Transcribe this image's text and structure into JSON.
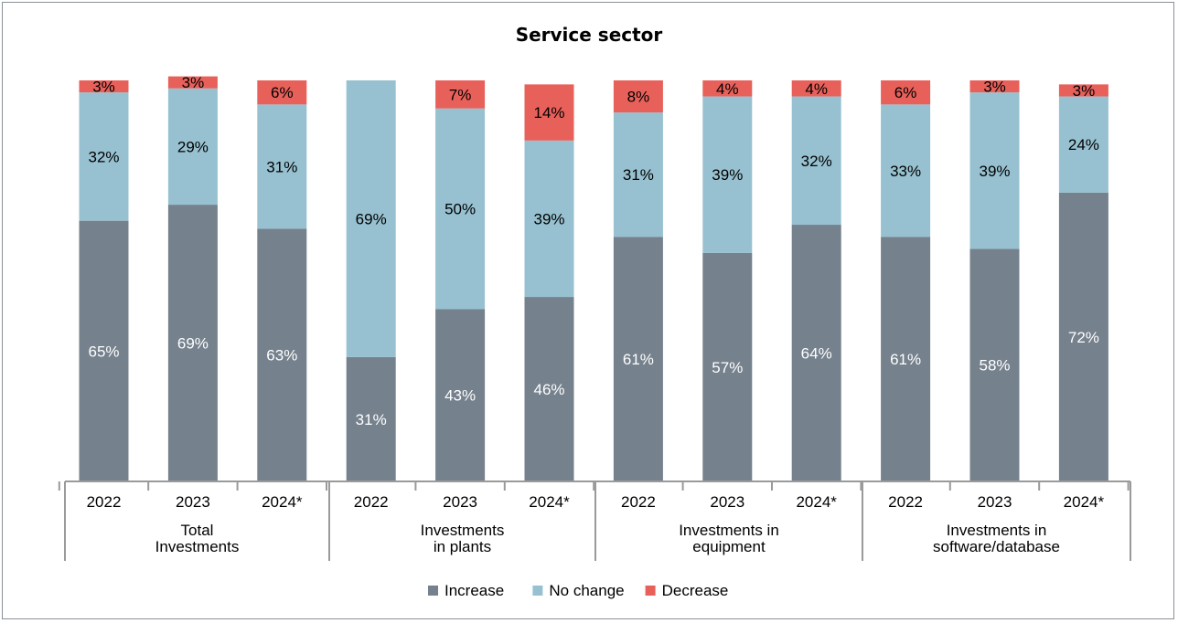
{
  "chart_data": {
    "type": "bar",
    "stacked": true,
    "percent": true,
    "title": "Service sector",
    "groups": [
      {
        "label": [
          "Total",
          "Investments"
        ],
        "years": [
          "2022",
          "2023",
          "2024*"
        ]
      },
      {
        "label": [
          "Investments",
          "in plants"
        ],
        "years": [
          "2022",
          "2023",
          "2024*"
        ]
      },
      {
        "label": [
          "Investments in",
          "equipment"
        ],
        "years": [
          "2022",
          "2023",
          "2024*"
        ]
      },
      {
        "label": [
          "Investments in",
          "software/database"
        ],
        "years": [
          "2022",
          "2023",
          "2024*"
        ]
      }
    ],
    "series": [
      {
        "name": "Increase",
        "color": "#75818d",
        "label_color": "#ffffff",
        "values": [
          65,
          69,
          63,
          31,
          43,
          46,
          61,
          57,
          64,
          61,
          58,
          72
        ]
      },
      {
        "name": "No change",
        "color": "#97c1d0",
        "label_color": "#000000",
        "values": [
          32,
          29,
          31,
          69,
          50,
          39,
          31,
          39,
          32,
          33,
          39,
          24
        ]
      },
      {
        "name": "Decrease",
        "color": "#e8605a",
        "label_color": "#000000",
        "values": [
          3,
          3,
          6,
          0,
          7,
          14,
          8,
          4,
          4,
          6,
          3,
          3
        ]
      }
    ],
    "value_suffix": "%",
    "legend_position": "bottom-center",
    "grid": false
  }
}
